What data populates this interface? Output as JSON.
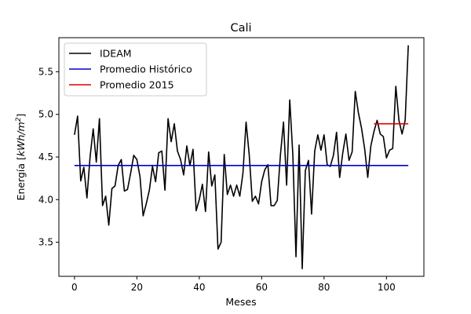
{
  "chart_data": {
    "type": "line",
    "title": "Cali",
    "xlabel": "Meses",
    "ylabel_prefix": "Energía [",
    "ylabel_unit": "kWh/m",
    "ylabel_sup": "2",
    "ylabel_suffix": "]",
    "xlim": [
      -5,
      112
    ],
    "ylim": [
      3.1,
      5.9
    ],
    "xticks": [
      0,
      20,
      40,
      60,
      80,
      100
    ],
    "yticks": [
      3.5,
      4.0,
      4.5,
      5.0,
      5.5
    ],
    "ytick_labels": [
      "3.5",
      "4.0",
      "4.5",
      "5.0",
      "5.5"
    ],
    "legend_position": "top-left",
    "series": [
      {
        "name": "IDEAM",
        "color": "#000000",
        "x": [
          0,
          1,
          2,
          3,
          4,
          5,
          6,
          7,
          8,
          9,
          10,
          11,
          12,
          13,
          14,
          15,
          16,
          17,
          18,
          19,
          20,
          21,
          22,
          23,
          24,
          25,
          26,
          27,
          28,
          29,
          30,
          31,
          32,
          33,
          34,
          35,
          36,
          37,
          38,
          39,
          40,
          41,
          42,
          43,
          44,
          45,
          46,
          47,
          48,
          49,
          50,
          51,
          52,
          53,
          54,
          55,
          56,
          57,
          58,
          59,
          60,
          61,
          62,
          63,
          64,
          65,
          66,
          67,
          68,
          69,
          70,
          71,
          72,
          73,
          74,
          75,
          76,
          77,
          78,
          79,
          80,
          81,
          82,
          83,
          84,
          85,
          86,
          87,
          88,
          89,
          90,
          91,
          92,
          93,
          94,
          95,
          96,
          97,
          98,
          99,
          100,
          101,
          102,
          103,
          104,
          105,
          106,
          107
        ],
        "y": [
          4.76,
          4.98,
          4.22,
          4.38,
          4.02,
          4.5,
          4.83,
          4.44,
          4.95,
          3.93,
          4.04,
          3.7,
          4.13,
          4.16,
          4.4,
          4.47,
          4.1,
          4.12,
          4.31,
          4.52,
          4.47,
          4.27,
          3.81,
          3.95,
          4.11,
          4.39,
          4.21,
          4.55,
          4.57,
          4.11,
          4.95,
          4.68,
          4.89,
          4.57,
          4.47,
          4.29,
          4.63,
          4.4,
          4.59,
          3.87,
          4.0,
          4.18,
          3.86,
          4.56,
          4.16,
          4.29,
          3.42,
          3.5,
          4.53,
          4.06,
          4.17,
          4.04,
          4.17,
          4.04,
          4.31,
          4.91,
          4.53,
          3.98,
          4.04,
          3.95,
          4.21,
          4.35,
          4.41,
          3.93,
          3.93,
          3.99,
          4.52,
          4.91,
          4.17,
          5.17,
          4.52,
          3.33,
          4.64,
          3.19,
          4.34,
          4.46,
          3.83,
          4.57,
          4.76,
          4.58,
          4.76,
          4.41,
          4.39,
          4.52,
          4.79,
          4.26,
          4.55,
          4.77,
          4.46,
          4.56,
          5.27,
          5.02,
          4.84,
          4.6,
          4.26,
          4.63,
          4.8,
          4.93,
          4.77,
          4.74,
          4.49,
          4.58,
          4.6,
          5.33,
          4.93,
          4.77,
          4.93,
          5.81
        ]
      },
      {
        "name": "Promedio Histórico",
        "color": "#0000cc",
        "x": [
          0,
          107
        ],
        "y": [
          4.4,
          4.4
        ]
      },
      {
        "name": "Promedio 2015",
        "color": "#dd0000",
        "x": [
          96,
          107
        ],
        "y": [
          4.89,
          4.89
        ]
      }
    ]
  }
}
